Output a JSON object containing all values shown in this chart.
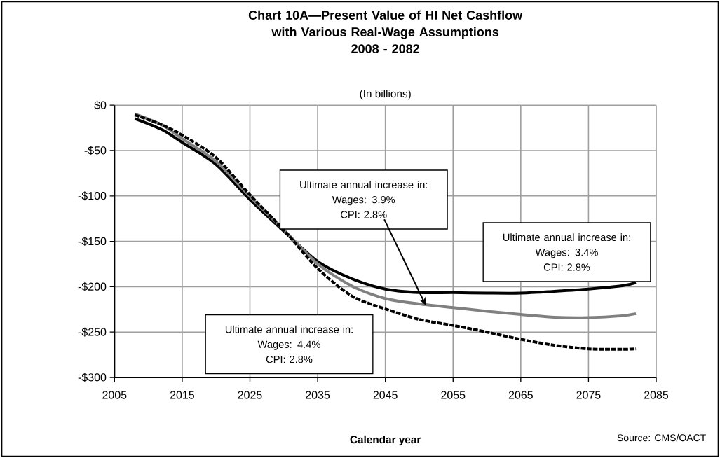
{
  "chart_data": {
    "type": "line",
    "title": "Chart 10A—Present Value of HI Net Cashflow with Various Real-Wage Assumptions",
    "subtitle": "2008 - 2082",
    "ylabel": "(In billions)",
    "xlabel": "Calendar year",
    "x": [
      2008,
      2012,
      2015,
      2020,
      2025,
      2030,
      2035,
      2040,
      2045,
      2050,
      2055,
      2060,
      2065,
      2070,
      2075,
      2080,
      2082
    ],
    "series": [
      {
        "color": "#000000",
        "line_style": "solid",
        "values": [
          -14.8,
          -26.9,
          -41,
          -65.4,
          -104,
          -138.7,
          -172,
          -191,
          -202.6,
          -206.5,
          -206.5,
          -207,
          -207,
          -205,
          -202.6,
          -199,
          -195.6
        ]
      },
      {
        "color": "#808080",
        "line_style": "solid",
        "values": [
          -9.6,
          -21.7,
          -37,
          -62,
          -100.6,
          -137.4,
          -174.7,
          -199,
          -213,
          -219,
          -223,
          -227,
          -230.5,
          -233.6,
          -234,
          -232,
          -229.7
        ]
      },
      {
        "color": "#000000",
        "line_style": "dashed",
        "values": [
          -10.7,
          -21.7,
          -33,
          -57.7,
          -98.8,
          -137.4,
          -179.8,
          -210,
          -224.5,
          -236,
          -242.6,
          -250,
          -258,
          -264.6,
          -268.5,
          -269,
          -268.5
        ]
      }
    ],
    "xlim": [
      2005,
      2085
    ],
    "xticks": [
      2005,
      2015,
      2025,
      2035,
      2045,
      2055,
      2065,
      2075,
      2085
    ],
    "ylim": [
      -300,
      0
    ],
    "yticks": [
      {
        "value": -300,
        "label": "-$300"
      },
      {
        "value": -250,
        "label": "-$250"
      },
      {
        "value": -200,
        "label": "-$200"
      },
      {
        "value": -150,
        "label": "-$150"
      },
      {
        "value": -100,
        "label": "-$100"
      },
      {
        "value": -50,
        "label": "-$50"
      },
      {
        "value": 0,
        "label": "$0"
      }
    ],
    "grid": true,
    "legend": false,
    "marker": "none",
    "annotations": [
      "Ultimate annual increase in:",
      "Wages:  3.9%",
      {
        "text": "CPI:      2.8%",
        "x": 2051,
        "y": -221
      },
      "Ultimate annual increase in:",
      "Wages:  3.4%",
      "CPI:      2.8%",
      "Ultimate annual increase in:",
      "Wages:  4.4%",
      "CPI:      2.8%",
      "Source: CMS/OACT"
    ]
  }
}
